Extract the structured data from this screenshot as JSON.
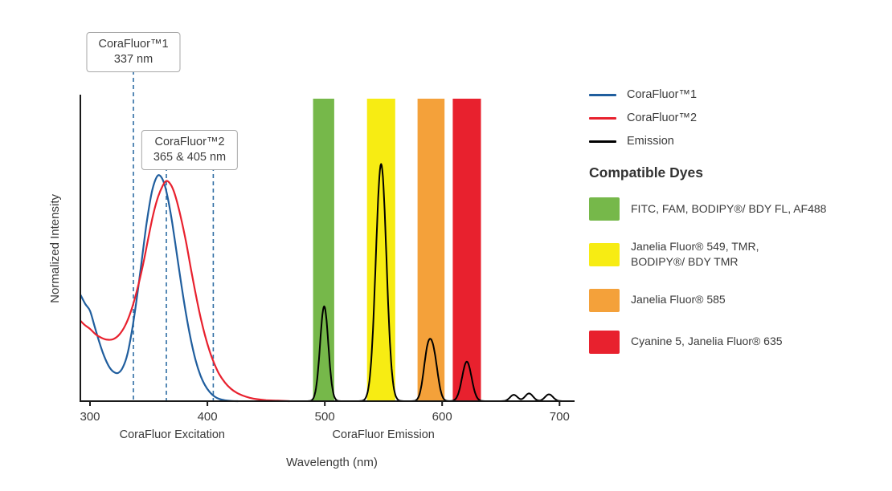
{
  "callouts": [
    {
      "line1": "CoraFluor™1",
      "line2": "337 nm"
    },
    {
      "line1": "CoraFluor™2",
      "line2": "365 & 405 nm"
    }
  ],
  "legend": {
    "items": [
      {
        "label": "CoraFluor™1",
        "color": "#205e9e"
      },
      {
        "label": "CoraFluor™2",
        "color": "#e8212e"
      },
      {
        "label": "Emission",
        "color": "#000000"
      }
    ]
  },
  "dyes": {
    "heading": "Compatible Dyes",
    "items": [
      {
        "name": "green-filter",
        "color": "#76b84a",
        "label": "FITC, FAM, BODIPY®/ BDY FL, AF488"
      },
      {
        "name": "yellow-filter",
        "color": "#f7ec13",
        "label": "Janelia Fluor® 549, TMR,\nBODIPY®/ BDY TMR"
      },
      {
        "name": "orange-filter",
        "color": "#f4a13a",
        "label": "Janelia Fluor® 585"
      },
      {
        "name": "red-filter",
        "color": "#e8212e",
        "label": "Cyanine 5, Janelia Fluor® 635"
      }
    ]
  },
  "chart_data": {
    "type": "line",
    "title": "",
    "xlabel": "Wavelength (nm)",
    "ylabel": "Normalized Intensity",
    "x_axis": {
      "min": 300,
      "max": 700,
      "ticks": [
        300,
        400,
        500,
        600,
        700
      ]
    },
    "y_axis": {
      "min": 0,
      "max": 1.35,
      "ticks": []
    },
    "legend_position": "top-right-outside",
    "region_labels": [
      {
        "text": "CoraFluor Excitation",
        "center_nm": 370
      },
      {
        "text": "CoraFluor Emission",
        "center_nm": 550
      }
    ],
    "filter_bands": [
      {
        "name": "green",
        "from_nm": 490,
        "to_nm": 508,
        "color": "#76b84a"
      },
      {
        "name": "yellow",
        "from_nm": 536,
        "to_nm": 560,
        "color": "#f7ec13"
      },
      {
        "name": "orange",
        "from_nm": 579,
        "to_nm": 602,
        "color": "#f4a13a"
      },
      {
        "name": "red",
        "from_nm": 609,
        "to_nm": 633,
        "color": "#e8212e"
      }
    ],
    "tpe_lines": [
      {
        "nm": 337,
        "callout": 0
      },
      {
        "nm": 365,
        "callout": 1
      },
      {
        "nm": 405,
        "callout": 1
      }
    ],
    "dashed_line_color": "#2e6da4",
    "series": [
      {
        "name": "CoraFluor™1",
        "kind": "excitation",
        "color": "#205e9e",
        "points": [
          [
            292,
            0.47
          ],
          [
            296,
            0.43
          ],
          [
            300,
            0.4
          ],
          [
            304,
            0.33
          ],
          [
            308,
            0.26
          ],
          [
            312,
            0.2
          ],
          [
            316,
            0.155
          ],
          [
            320,
            0.13
          ],
          [
            324,
            0.125
          ],
          [
            328,
            0.15
          ],
          [
            332,
            0.21
          ],
          [
            336,
            0.32
          ],
          [
            340,
            0.46
          ],
          [
            344,
            0.62
          ],
          [
            348,
            0.78
          ],
          [
            352,
            0.91
          ],
          [
            355,
            0.97
          ],
          [
            358,
            1.0
          ],
          [
            361,
            0.99
          ],
          [
            364,
            0.95
          ],
          [
            367,
            0.88
          ],
          [
            370,
            0.79
          ],
          [
            374,
            0.65
          ],
          [
            378,
            0.51
          ],
          [
            382,
            0.38
          ],
          [
            386,
            0.27
          ],
          [
            390,
            0.18
          ],
          [
            394,
            0.115
          ],
          [
            398,
            0.07
          ],
          [
            402,
            0.04
          ],
          [
            406,
            0.021
          ],
          [
            410,
            0.01
          ],
          [
            415,
            0.004
          ],
          [
            420,
            0.001
          ],
          [
            426,
            0
          ]
        ]
      },
      {
        "name": "CoraFluor™2",
        "kind": "excitation",
        "color": "#e8212e",
        "points": [
          [
            292,
            0.355
          ],
          [
            296,
            0.335
          ],
          [
            300,
            0.32
          ],
          [
            305,
            0.295
          ],
          [
            310,
            0.28
          ],
          [
            315,
            0.272
          ],
          [
            320,
            0.275
          ],
          [
            325,
            0.295
          ],
          [
            330,
            0.335
          ],
          [
            335,
            0.4
          ],
          [
            340,
            0.49
          ],
          [
            345,
            0.6
          ],
          [
            350,
            0.73
          ],
          [
            354,
            0.83
          ],
          [
            358,
            0.905
          ],
          [
            362,
            0.955
          ],
          [
            365,
            0.975
          ],
          [
            368,
            0.965
          ],
          [
            371,
            0.935
          ],
          [
            374,
            0.885
          ],
          [
            378,
            0.8
          ],
          [
            382,
            0.7
          ],
          [
            386,
            0.585
          ],
          [
            390,
            0.475
          ],
          [
            394,
            0.375
          ],
          [
            398,
            0.29
          ],
          [
            402,
            0.22
          ],
          [
            406,
            0.165
          ],
          [
            410,
            0.12
          ],
          [
            415,
            0.082
          ],
          [
            420,
            0.055
          ],
          [
            425,
            0.037
          ],
          [
            430,
            0.025
          ],
          [
            436,
            0.015
          ],
          [
            442,
            0.009
          ],
          [
            450,
            0.004
          ],
          [
            460,
            0.002
          ],
          [
            470,
            0
          ]
        ]
      },
      {
        "name": "Emission",
        "kind": "emission",
        "color": "#000000",
        "peaks": [
          {
            "center": 499.5,
            "sigma": 3.5,
            "height": 0.42
          },
          {
            "center": 548,
            "sigma": 4.5,
            "height": 1.05
          },
          {
            "center": 587.5,
            "sigma": 3.5,
            "height": 0.2
          },
          {
            "center": 593,
            "sigma": 3.5,
            "height": 0.175
          },
          {
            "center": 621,
            "sigma": 4.0,
            "height": 0.175
          },
          {
            "center": 661,
            "sigma": 3.2,
            "height": 0.028
          },
          {
            "center": 674,
            "sigma": 3.4,
            "height": 0.034
          },
          {
            "center": 691,
            "sigma": 3.4,
            "height": 0.03
          }
        ]
      }
    ]
  }
}
